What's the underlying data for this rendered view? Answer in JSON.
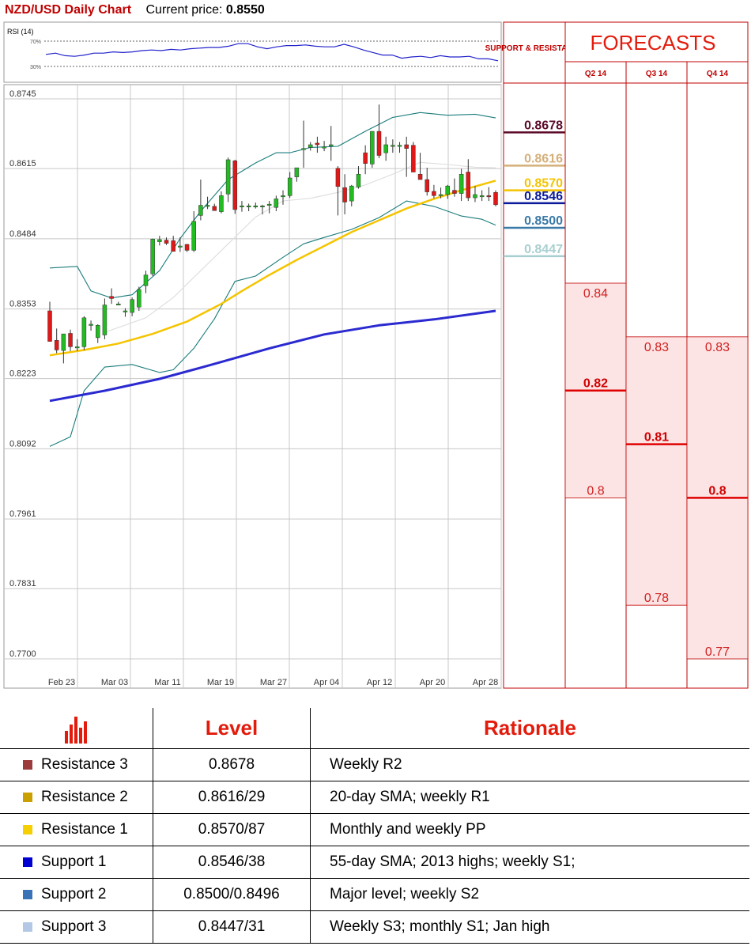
{
  "header": {
    "title": "NZD/USD Daily Chart",
    "price_label": "Current price:",
    "price_value": "0.8550"
  },
  "rsi_panel": {
    "label": "RSI (14)",
    "upper_label": "70%",
    "lower_label": "30%",
    "values": [
      49,
      51,
      47,
      46,
      48,
      51,
      51,
      53,
      52,
      53,
      55,
      56,
      55,
      57,
      56,
      58,
      59,
      60,
      60,
      62,
      66,
      66,
      61,
      58,
      61,
      63,
      63,
      64,
      62,
      61,
      61,
      65,
      61,
      56,
      52,
      48,
      48,
      43,
      45,
      46,
      44,
      47,
      45,
      45,
      46,
      42,
      42,
      39
    ]
  },
  "chart_data": {
    "type": "candlestick",
    "title": "NZD/USD Daily Chart",
    "xlabel": "",
    "ylabel": "",
    "x_tick_labels": [
      "Feb 23",
      "Mar 03",
      "Mar 11",
      "Mar 19",
      "Mar 27",
      "Apr 04",
      "Apr 12",
      "Apr 20",
      "Apr 28"
    ],
    "y_tick_labels": [
      "0.8745",
      "0.8615",
      "0.8484",
      "0.8353",
      "0.8223",
      "0.8092",
      "0.7961",
      "0.7831",
      "0.7700"
    ],
    "ylim": [
      0.77,
      0.8745
    ],
    "grid": true,
    "candles": [
      {
        "o": 0.8345,
        "h": 0.8362,
        "l": 0.829,
        "c": 0.8288
      },
      {
        "o": 0.829,
        "h": 0.8312,
        "l": 0.8266,
        "c": 0.8272
      },
      {
        "o": 0.8271,
        "h": 0.8302,
        "l": 0.8247,
        "c": 0.8302
      },
      {
        "o": 0.8303,
        "h": 0.831,
        "l": 0.827,
        "c": 0.8278
      },
      {
        "o": 0.8278,
        "h": 0.8292,
        "l": 0.827,
        "c": 0.8278
      },
      {
        "o": 0.8278,
        "h": 0.8335,
        "l": 0.8272,
        "c": 0.8332
      },
      {
        "o": 0.832,
        "h": 0.8327,
        "l": 0.8308,
        "c": 0.832
      },
      {
        "o": 0.8295,
        "h": 0.832,
        "l": 0.8285,
        "c": 0.8318
      },
      {
        "o": 0.83,
        "h": 0.8368,
        "l": 0.8292,
        "c": 0.8356
      },
      {
        "o": 0.8372,
        "h": 0.8387,
        "l": 0.8358,
        "c": 0.8368
      },
      {
        "o": 0.8358,
        "h": 0.8362,
        "l": 0.8357,
        "c": 0.8358
      },
      {
        "o": 0.8345,
        "h": 0.835,
        "l": 0.8334,
        "c": 0.8345
      },
      {
        "o": 0.8342,
        "h": 0.837,
        "l": 0.8335,
        "c": 0.8366
      },
      {
        "o": 0.8352,
        "h": 0.839,
        "l": 0.8345,
        "c": 0.8385
      },
      {
        "o": 0.8392,
        "h": 0.842,
        "l": 0.8378,
        "c": 0.8412
      },
      {
        "o": 0.8414,
        "h": 0.848,
        "l": 0.841,
        "c": 0.8479
      },
      {
        "o": 0.8474,
        "h": 0.8485,
        "l": 0.8467,
        "c": 0.8478
      },
      {
        "o": 0.8477,
        "h": 0.8482,
        "l": 0.8468,
        "c": 0.8471
      },
      {
        "o": 0.8476,
        "h": 0.8485,
        "l": 0.8456,
        "c": 0.8456
      },
      {
        "o": 0.8466,
        "h": 0.8482,
        "l": 0.8455,
        "c": 0.8466
      },
      {
        "o": 0.8469,
        "h": 0.847,
        "l": 0.8455,
        "c": 0.8458
      },
      {
        "o": 0.8458,
        "h": 0.8531,
        "l": 0.8455,
        "c": 0.8512
      },
      {
        "o": 0.8523,
        "h": 0.859,
        "l": 0.8514,
        "c": 0.8542
      },
      {
        "o": 0.8542,
        "h": 0.8558,
        "l": 0.8535,
        "c": 0.8542
      },
      {
        "o": 0.854,
        "h": 0.8545,
        "l": 0.8532,
        "c": 0.8532
      },
      {
        "o": 0.853,
        "h": 0.8568,
        "l": 0.8527,
        "c": 0.856
      },
      {
        "o": 0.8563,
        "h": 0.8631,
        "l": 0.8548,
        "c": 0.8627
      },
      {
        "o": 0.8625,
        "h": 0.8627,
        "l": 0.8526,
        "c": 0.8534
      },
      {
        "o": 0.8541,
        "h": 0.855,
        "l": 0.853,
        "c": 0.8541
      },
      {
        "o": 0.8541,
        "h": 0.8545,
        "l": 0.8531,
        "c": 0.8541
      },
      {
        "o": 0.8541,
        "h": 0.8547,
        "l": 0.8536,
        "c": 0.8541
      },
      {
        "o": 0.8541,
        "h": 0.8543,
        "l": 0.8525,
        "c": 0.8541
      },
      {
        "o": 0.8544,
        "h": 0.855,
        "l": 0.8527,
        "c": 0.8544
      },
      {
        "o": 0.8538,
        "h": 0.856,
        "l": 0.8531,
        "c": 0.8554
      },
      {
        "o": 0.856,
        "h": 0.857,
        "l": 0.8543,
        "c": 0.856
      },
      {
        "o": 0.856,
        "h": 0.8604,
        "l": 0.8556,
        "c": 0.8593
      },
      {
        "o": 0.8595,
        "h": 0.8612,
        "l": 0.8586,
        "c": 0.8612
      },
      {
        "o": 0.8648,
        "h": 0.87,
        "l": 0.8612,
        "c": 0.8648
      },
      {
        "o": 0.865,
        "h": 0.866,
        "l": 0.8644,
        "c": 0.8655
      },
      {
        "o": 0.8658,
        "h": 0.867,
        "l": 0.864,
        "c": 0.8655
      },
      {
        "o": 0.865,
        "h": 0.8662,
        "l": 0.8643,
        "c": 0.8651
      },
      {
        "o": 0.8655,
        "h": 0.869,
        "l": 0.8625,
        "c": 0.8655
      },
      {
        "o": 0.8611,
        "h": 0.8615,
        "l": 0.8523,
        "c": 0.8577
      },
      {
        "o": 0.8575,
        "h": 0.86,
        "l": 0.8525,
        "c": 0.8548
      },
      {
        "o": 0.855,
        "h": 0.858,
        "l": 0.854,
        "c": 0.8578
      },
      {
        "o": 0.8576,
        "h": 0.8615,
        "l": 0.8573,
        "c": 0.86
      },
      {
        "o": 0.864,
        "h": 0.8654,
        "l": 0.86,
        "c": 0.862
      },
      {
        "o": 0.8619,
        "h": 0.868,
        "l": 0.8612,
        "c": 0.868
      },
      {
        "o": 0.868,
        "h": 0.873,
        "l": 0.863,
        "c": 0.8635
      },
      {
        "o": 0.864,
        "h": 0.867,
        "l": 0.8625,
        "c": 0.8655
      },
      {
        "o": 0.8654,
        "h": 0.8665,
        "l": 0.864,
        "c": 0.8654
      },
      {
        "o": 0.8654,
        "h": 0.866,
        "l": 0.864,
        "c": 0.8654
      },
      {
        "o": 0.8655,
        "h": 0.867,
        "l": 0.8595,
        "c": 0.8648
      },
      {
        "o": 0.8654,
        "h": 0.866,
        "l": 0.8604,
        "c": 0.8604
      },
      {
        "o": 0.86,
        "h": 0.864,
        "l": 0.8593,
        "c": 0.859
      },
      {
        "o": 0.859,
        "h": 0.8612,
        "l": 0.856,
        "c": 0.8567
      },
      {
        "o": 0.8568,
        "h": 0.858,
        "l": 0.8555,
        "c": 0.856
      },
      {
        "o": 0.856,
        "h": 0.8575,
        "l": 0.8555,
        "c": 0.8562
      },
      {
        "o": 0.8562,
        "h": 0.858,
        "l": 0.8554,
        "c": 0.8578
      },
      {
        "o": 0.857,
        "h": 0.8592,
        "l": 0.8558,
        "c": 0.8564
      },
      {
        "o": 0.8564,
        "h": 0.861,
        "l": 0.855,
        "c": 0.86
      },
      {
        "o": 0.8604,
        "h": 0.8628,
        "l": 0.855,
        "c": 0.8556
      },
      {
        "o": 0.8556,
        "h": 0.8578,
        "l": 0.8548,
        "c": 0.8562
      },
      {
        "o": 0.856,
        "h": 0.857,
        "l": 0.855,
        "c": 0.856
      },
      {
        "o": 0.856,
        "h": 0.8576,
        "l": 0.855,
        "c": 0.8558
      },
      {
        "o": 0.8566,
        "h": 0.857,
        "l": 0.854,
        "c": 0.8543
      }
    ],
    "series": [
      {
        "key": "sma55",
        "color": "#f5c400",
        "values": [
          [
            0,
            0.8262
          ],
          [
            5,
            0.8272
          ],
          [
            10,
            0.8284
          ],
          [
            15,
            0.8302
          ],
          [
            20,
            0.8325
          ],
          [
            25,
            0.8358
          ],
          [
            28,
            0.8382
          ],
          [
            32,
            0.8412
          ],
          [
            36,
            0.844
          ],
          [
            40,
            0.8466
          ],
          [
            44,
            0.8492
          ],
          [
            48,
            0.8514
          ],
          [
            52,
            0.8536
          ],
          [
            56,
            0.8554
          ],
          [
            60,
            0.857
          ],
          [
            65,
            0.8588
          ]
        ]
      },
      {
        "key": "sma200",
        "color": "#2a2ad0",
        "values": [
          [
            0,
            0.8177
          ],
          [
            8,
            0.8196
          ],
          [
            16,
            0.8218
          ],
          [
            24,
            0.8246
          ],
          [
            32,
            0.8275
          ],
          [
            40,
            0.8301
          ],
          [
            48,
            0.8318
          ],
          [
            56,
            0.8329
          ],
          [
            65,
            0.8345
          ]
        ]
      },
      {
        "key": "bb_upper",
        "color": "#1b7c7c",
        "values": [
          [
            0,
            0.8425
          ],
          [
            4,
            0.8428
          ],
          [
            6,
            0.8382
          ],
          [
            9,
            0.8369
          ],
          [
            12,
            0.8375
          ],
          [
            16,
            0.842
          ],
          [
            19,
            0.848
          ],
          [
            22,
            0.8531
          ],
          [
            26,
            0.859
          ],
          [
            30,
            0.8621
          ],
          [
            33,
            0.864
          ],
          [
            35,
            0.864
          ],
          [
            38,
            0.865
          ],
          [
            42,
            0.8652
          ],
          [
            46,
            0.868
          ],
          [
            50,
            0.8706
          ],
          [
            54,
            0.8715
          ],
          [
            58,
            0.871
          ],
          [
            62,
            0.8712
          ],
          [
            65,
            0.8705
          ]
        ]
      },
      {
        "key": "bb_lower",
        "color": "#1b7c7c",
        "values": [
          [
            0,
            0.8092
          ],
          [
            3,
            0.811
          ],
          [
            5,
            0.8196
          ],
          [
            8,
            0.824
          ],
          [
            12,
            0.8245
          ],
          [
            16,
            0.823
          ],
          [
            18,
            0.8235
          ],
          [
            21,
            0.8275
          ],
          [
            24,
            0.833
          ],
          [
            27,
            0.84
          ],
          [
            30,
            0.841
          ],
          [
            34,
            0.8445
          ],
          [
            37,
            0.847
          ],
          [
            40,
            0.8482
          ],
          [
            44,
            0.8497
          ],
          [
            48,
            0.8519
          ],
          [
            52,
            0.855
          ],
          [
            56,
            0.854
          ],
          [
            60,
            0.8522
          ],
          [
            63,
            0.8516
          ],
          [
            65,
            0.8505
          ]
        ]
      },
      {
        "key": "bb_mid",
        "color": "#dddddd",
        "values": [
          [
            8,
            0.8305
          ],
          [
            14,
            0.8332
          ],
          [
            18,
            0.837
          ],
          [
            22,
            0.842
          ],
          [
            26,
            0.847
          ],
          [
            30,
            0.852
          ],
          [
            34,
            0.855
          ],
          [
            38,
            0.8555
          ],
          [
            42,
            0.8566
          ],
          [
            46,
            0.858
          ],
          [
            50,
            0.86
          ],
          [
            54,
            0.8622
          ],
          [
            58,
            0.8618
          ],
          [
            62,
            0.8613
          ],
          [
            65,
            0.8612
          ]
        ]
      }
    ]
  },
  "levels_panel": {
    "title": "SUPPORT & RESISTANCE",
    "items": [
      {
        "label": "0.8678",
        "value": 0.8678,
        "color": "#5b0a2a"
      },
      {
        "label": "0.8616",
        "value": 0.8616,
        "color": "#d5b07a"
      },
      {
        "label": "0.8570",
        "value": 0.857,
        "color": "#f5c400"
      },
      {
        "label": "0.8546",
        "value": 0.8546,
        "color": "#0a1a9a"
      },
      {
        "label": "0.8500",
        "value": 0.85,
        "color": "#3a7aa8"
      },
      {
        "label": "0.8447",
        "value": 0.8447,
        "color": "#a8cfd0"
      }
    ]
  },
  "forecasts": {
    "title": "FORECASTS",
    "columns": [
      {
        "label": "Q2 14",
        "high": 0.84,
        "high_label": "0.84",
        "mid": 0.82,
        "mid_label": "0.82",
        "low": 0.8,
        "low_label": "0.8"
      },
      {
        "label": "Q3 14",
        "high": 0.83,
        "high_label": "0.83",
        "mid": 0.81,
        "mid_label": "0.81",
        "low": 0.78,
        "low_label": "0.78"
      },
      {
        "label": "Q4 14",
        "high": 0.83,
        "high_label": "0.83",
        "mid": 0.8,
        "mid_label": "0.8",
        "low": 0.77,
        "low_label": "0.77"
      }
    ]
  },
  "levels_table": {
    "headers": {
      "level": "Level",
      "rationale": "Rationale"
    },
    "rows": [
      {
        "name": "Resistance 3",
        "level": "0.8678",
        "rationale": "Weekly R2",
        "color": "#9b3b3b"
      },
      {
        "name": "Resistance 2",
        "level": "0.8616/29",
        "rationale": "20-day SMA; weekly R1",
        "color": "#c9a000"
      },
      {
        "name": "Resistance 1",
        "level": "0.8570/87",
        "rationale": "Monthly and weekly PP",
        "color": "#f5cf00"
      },
      {
        "name": "Support 1",
        "level": "0.8546/38",
        "rationale": "55-day SMA; 2013 highs; weekly S1;",
        "color": "#0000d0"
      },
      {
        "name": "Support 2",
        "level": "0.8500/0.8496",
        "rationale": "Major level; weekly S2",
        "color": "#3a72b8"
      },
      {
        "name": "Support 3",
        "level": "0.8447/31",
        "rationale": "Weekly S3; monthly S1; Jan high",
        "color": "#b4c8e6"
      }
    ]
  }
}
